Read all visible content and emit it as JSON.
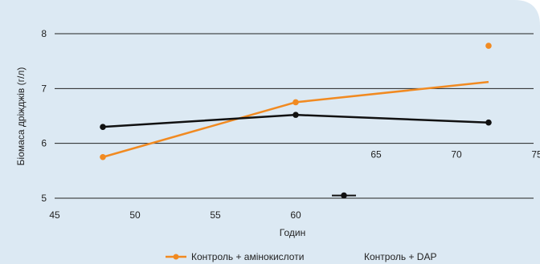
{
  "chart_data": {
    "type": "line",
    "title": "",
    "xlabel": "Годин",
    "ylabel": "Біомаса дріжджів (г/л)",
    "xlim": [
      45,
      75
    ],
    "ylim": [
      5,
      8
    ],
    "x_ticks_bottom": [
      45,
      50,
      55,
      60
    ],
    "x_ticks_upper": [
      65,
      70,
      75
    ],
    "y_ticks": [
      5,
      6,
      7,
      8
    ],
    "grid": "horizontal",
    "legend_position": "bottom",
    "colors": {
      "background": "#dce9f3",
      "series_orange": "#f18a21",
      "series_black": "#111111",
      "gridline": "#222222"
    },
    "series": [
      {
        "name": "Контроль + амінокислоти",
        "color": "#f18a21",
        "points": [
          [
            48,
            5.75
          ],
          [
            60,
            6.75
          ],
          [
            72,
            7.78
          ]
        ],
        "trend": [
          [
            48,
            5.75
          ],
          [
            60,
            6.75
          ],
          [
            72,
            7.12
          ]
        ]
      },
      {
        "name": "Контроль + DAP",
        "color": "#111111",
        "points": [
          [
            48,
            6.3
          ],
          [
            60,
            6.52
          ],
          [
            72,
            6.38
          ],
          [
            63,
            5.05
          ]
        ],
        "trend": [
          [
            48,
            6.3
          ],
          [
            60,
            6.52
          ],
          [
            72,
            6.38
          ]
        ]
      }
    ]
  }
}
